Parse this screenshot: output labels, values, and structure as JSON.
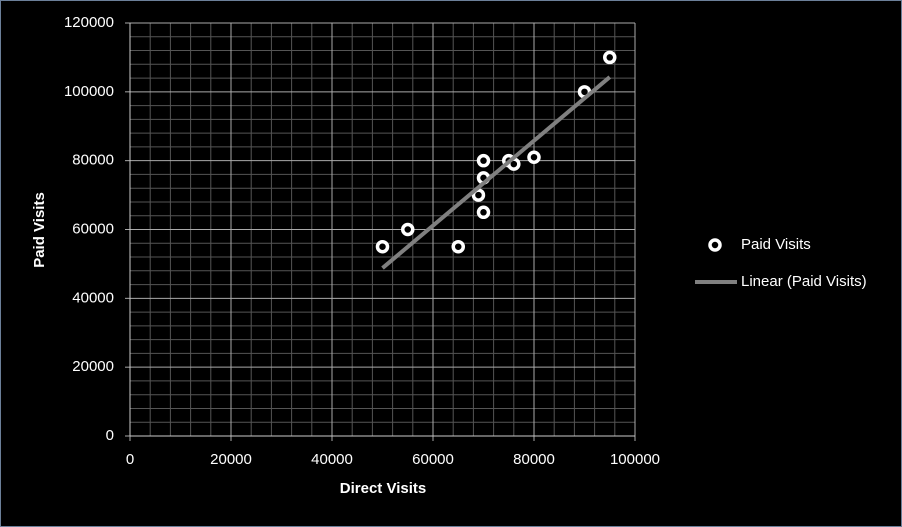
{
  "chart_data": {
    "type": "scatter",
    "x_label": "Direct Visits",
    "y_label": "Paid Visits",
    "series": [
      {
        "name": "Paid Visits",
        "color": "#ffffff",
        "x": [
          50000,
          55000,
          65000,
          69000,
          70000,
          70000,
          70000,
          75000,
          76000,
          80000,
          90000,
          95000
        ],
        "values": [
          55000,
          60000,
          55000,
          70000,
          65000,
          75000,
          80000,
          80000,
          79000,
          81000,
          100000,
          110000
        ]
      },
      {
        "name": "Linear (Paid Visits)",
        "color": "#808080",
        "kind": "line",
        "x": [
          50000,
          95000
        ],
        "values": [
          48800,
          104300
        ]
      }
    ],
    "xlim": [
      0,
      100000
    ],
    "xticks": [
      0,
      20000,
      40000,
      60000,
      80000,
      100000
    ],
    "ylim": [
      0,
      120000
    ],
    "yticks": [
      0,
      20000,
      40000,
      60000,
      80000,
      100000,
      120000
    ],
    "grid": true,
    "legend": "right"
  }
}
